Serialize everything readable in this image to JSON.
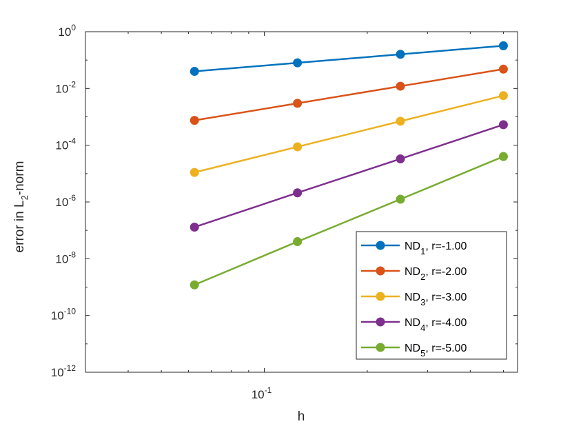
{
  "chart_data": {
    "type": "line",
    "xscale": "log",
    "yscale": "log",
    "xlabel": "h",
    "ylabel": "error in L₂-norm",
    "ylabel_parts": {
      "base": "error in L",
      "sub": "2",
      "rest": "-norm"
    },
    "xlim": [
      0.03,
      0.55
    ],
    "ylim": [
      1e-12,
      1
    ],
    "x": [
      0.0625,
      0.125,
      0.25,
      0.5
    ],
    "xticks": [
      {
        "base": "10",
        "exp": "-1",
        "value": 0.1
      }
    ],
    "yticks": [
      {
        "base": "10",
        "exp": "0",
        "value": 0
      },
      {
        "base": "10",
        "exp": "-2",
        "value": -2
      },
      {
        "base": "10",
        "exp": "-4",
        "value": -4
      },
      {
        "base": "10",
        "exp": "-6",
        "value": -6
      },
      {
        "base": "10",
        "exp": "-8",
        "value": -8
      },
      {
        "base": "10",
        "exp": "-10",
        "value": -10
      },
      {
        "base": "10",
        "exp": "-12",
        "value": -12
      }
    ],
    "series": [
      {
        "name": "ND",
        "sub": "1",
        "rate": ", r=-1.00",
        "color": "#0072BD",
        "values": [
          0.04,
          0.08,
          0.16,
          0.32
        ]
      },
      {
        "name": "ND",
        "sub": "2",
        "rate": ", r=-2.00",
        "color": "#D95319",
        "values": [
          0.00075,
          0.003,
          0.012,
          0.048
        ]
      },
      {
        "name": "ND",
        "sub": "3",
        "rate": ", r=-3.00",
        "color": "#EDB120",
        "values": [
          1.1e-05,
          8.8e-05,
          0.0007,
          0.0056
        ]
      },
      {
        "name": "ND",
        "sub": "4",
        "rate": ", r=-4.00",
        "color": "#7E2F8E",
        "values": [
          1.3e-07,
          2.1e-06,
          3.3e-05,
          0.00053
        ]
      },
      {
        "name": "ND",
        "sub": "5",
        "rate": ", r=-5.00",
        "color": "#77AC30",
        "values": [
          1.2e-09,
          4e-08,
          1.25e-06,
          4e-05
        ]
      }
    ],
    "legend_position": "bottom-right",
    "grid": false
  }
}
